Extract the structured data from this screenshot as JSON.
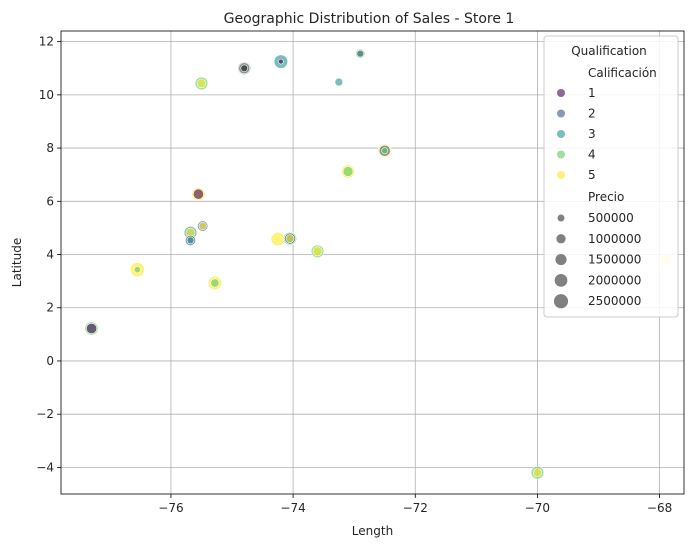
{
  "chart_data": {
    "type": "scatter",
    "title": "Geographic Distribution of Sales - Store 1",
    "xlabel": "Length",
    "ylabel": "Latitude",
    "xlim": [
      -77.8,
      -67.6
    ],
    "ylim": [
      -5,
      12.4
    ],
    "xticks": [
      -76,
      -74,
      -72,
      -70,
      -68
    ],
    "yticks": [
      -4,
      -2,
      0,
      2,
      4,
      6,
      8,
      10,
      12
    ],
    "xtick_labels": [
      "−76",
      "−74",
      "−72",
      "−70",
      "−68"
    ],
    "ytick_labels": [
      "−4",
      "−2",
      "0",
      "2",
      "4",
      "6",
      "8",
      "10",
      "12"
    ],
    "grid": true,
    "legend": {
      "position": "top-right",
      "title": "Qualification",
      "hue_title": "Calificación",
      "hue_entries": [
        {
          "label": "1",
          "color": "#440154"
        },
        {
          "label": "2",
          "color": "#3b528b"
        },
        {
          "label": "3",
          "color": "#21918c"
        },
        {
          "label": "4",
          "color": "#5ec962"
        },
        {
          "label": "5",
          "color": "#fde725"
        }
      ],
      "size_title": "Precio",
      "size_entries": [
        {
          "label": "500000",
          "value": 500000
        },
        {
          "label": "1000000",
          "value": 1000000
        },
        {
          "label": "1500000",
          "value": 1500000
        },
        {
          "label": "2000000",
          "value": 2000000
        },
        {
          "label": "2500000",
          "value": 2500000
        }
      ]
    },
    "points": [
      {
        "x": -74.8,
        "y": 11.0,
        "q": 1,
        "price": 2000000
      },
      {
        "x": -74.8,
        "y": 11.0,
        "q": 4,
        "price": 1500000
      },
      {
        "x": -74.8,
        "y": 11.0,
        "q": 1,
        "price": 500000
      },
      {
        "x": -74.2,
        "y": 11.25,
        "q": 3,
        "price": 2300000
      },
      {
        "x": -74.2,
        "y": 11.25,
        "q": 1,
        "price": 200000
      },
      {
        "x": -72.9,
        "y": 11.55,
        "q": 4,
        "price": 1000000
      },
      {
        "x": -72.9,
        "y": 11.55,
        "q": 2,
        "price": 500000
      },
      {
        "x": -73.25,
        "y": 10.48,
        "q": 3,
        "price": 700000
      },
      {
        "x": -75.5,
        "y": 10.43,
        "q": 4,
        "price": 2000000
      },
      {
        "x": -75.5,
        "y": 10.43,
        "q": 5,
        "price": 900000
      },
      {
        "x": -72.5,
        "y": 7.9,
        "q": 5,
        "price": 2300000
      },
      {
        "x": -72.5,
        "y": 7.9,
        "q": 2,
        "price": 1500000
      },
      {
        "x": -72.5,
        "y": 7.9,
        "q": 4,
        "price": 400000
      },
      {
        "x": -73.1,
        "y": 7.12,
        "q": 5,
        "price": 2200000
      },
      {
        "x": -73.1,
        "y": 7.12,
        "q": 4,
        "price": 1200000
      },
      {
        "x": -75.55,
        "y": 6.27,
        "q": 5,
        "price": 2200000
      },
      {
        "x": -75.55,
        "y": 6.27,
        "q": 1,
        "price": 1300000
      },
      {
        "x": -75.48,
        "y": 5.07,
        "q": 2,
        "price": 1300000
      },
      {
        "x": -75.48,
        "y": 5.07,
        "q": 5,
        "price": 600000
      },
      {
        "x": -75.68,
        "y": 4.82,
        "q": 3,
        "price": 2000000
      },
      {
        "x": -75.68,
        "y": 4.82,
        "q": 5,
        "price": 1000000
      },
      {
        "x": -75.68,
        "y": 4.53,
        "q": 2,
        "price": 1300000
      },
      {
        "x": -75.68,
        "y": 4.53,
        "q": 3,
        "price": 500000
      },
      {
        "x": -74.25,
        "y": 4.58,
        "q": 5,
        "price": 2300000
      },
      {
        "x": -74.05,
        "y": 4.6,
        "q": 4,
        "price": 2200000
      },
      {
        "x": -74.05,
        "y": 4.6,
        "q": 2,
        "price": 1500000
      },
      {
        "x": -74.05,
        "y": 4.6,
        "q": 5,
        "price": 700000
      },
      {
        "x": -73.6,
        "y": 4.12,
        "q": 4,
        "price": 2000000
      },
      {
        "x": -73.6,
        "y": 4.12,
        "q": 5,
        "price": 1000000
      },
      {
        "x": -76.55,
        "y": 3.43,
        "q": 5,
        "price": 2500000
      },
      {
        "x": -76.55,
        "y": 3.43,
        "q": 4,
        "price": 400000
      },
      {
        "x": -75.28,
        "y": 2.93,
        "q": 5,
        "price": 2300000
      },
      {
        "x": -75.28,
        "y": 2.93,
        "q": 4,
        "price": 800000
      },
      {
        "x": -77.3,
        "y": 1.22,
        "q": 4,
        "price": 2200000
      },
      {
        "x": -77.3,
        "y": 1.22,
        "q": 1,
        "price": 1300000
      },
      {
        "x": -70.0,
        "y": -4.2,
        "q": 4,
        "price": 2000000
      },
      {
        "x": -70.0,
        "y": -4.2,
        "q": 5,
        "price": 800000
      },
      {
        "x": -67.9,
        "y": 3.8,
        "q": 5,
        "price": 1500000
      }
    ]
  }
}
